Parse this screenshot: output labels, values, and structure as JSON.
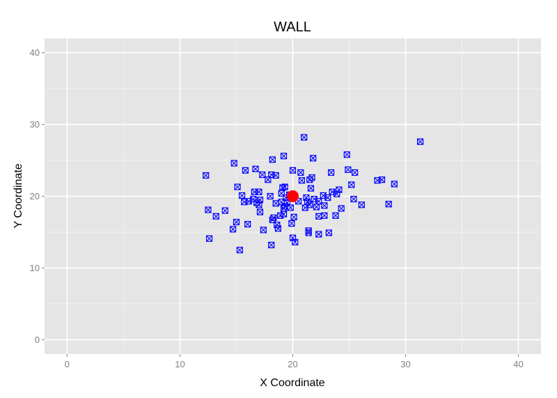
{
  "chart_data": {
    "type": "scatter",
    "title": "WALL",
    "xlabel": "X Coordinate",
    "ylabel": "Y Coordinate",
    "xlim": [
      -2,
      42
    ],
    "ylim": [
      -2,
      42
    ],
    "xticks": [
      0,
      10,
      20,
      30,
      40
    ],
    "yticks": [
      0,
      10,
      20,
      30,
      40
    ],
    "grid": true,
    "colors": {
      "panel": "#e5e5e5",
      "grid_major": "#ffffff",
      "grid_minor": "#f2f2f2",
      "points": "#0000ff",
      "center": "#ff0000"
    },
    "series": [
      {
        "marker": "square-cross",
        "points": [
          [
            12.3,
            22.9
          ],
          [
            12.5,
            18.1
          ],
          [
            12.6,
            14.1
          ],
          [
            13.2,
            17.2
          ],
          [
            14.0,
            18.0
          ],
          [
            14.7,
            15.4
          ],
          [
            14.8,
            24.6
          ],
          [
            15.0,
            16.4
          ],
          [
            15.1,
            21.3
          ],
          [
            15.3,
            12.5
          ],
          [
            15.5,
            20.1
          ],
          [
            15.8,
            23.6
          ],
          [
            15.7,
            19.2
          ],
          [
            16.0,
            16.1
          ],
          [
            16.1,
            19.3
          ],
          [
            16.5,
            19.6
          ],
          [
            16.6,
            20.6
          ],
          [
            16.7,
            23.8
          ],
          [
            16.8,
            19.1
          ],
          [
            17.0,
            20.6
          ],
          [
            17.0,
            18.8
          ],
          [
            17.1,
            19.5
          ],
          [
            17.1,
            17.8
          ],
          [
            17.3,
            23.0
          ],
          [
            17.4,
            15.3
          ],
          [
            17.8,
            22.3
          ],
          [
            18.0,
            20.0
          ],
          [
            18.1,
            23.0
          ],
          [
            18.2,
            25.1
          ],
          [
            18.2,
            16.7
          ],
          [
            18.1,
            13.2
          ],
          [
            18.3,
            17.0
          ],
          [
            18.5,
            22.9
          ],
          [
            18.5,
            19.0
          ],
          [
            18.6,
            16.0
          ],
          [
            18.7,
            15.5
          ],
          [
            18.9,
            17.3
          ],
          [
            19.0,
            19.2
          ],
          [
            19.0,
            20.4
          ],
          [
            19.1,
            21.2
          ],
          [
            19.2,
            18.3
          ],
          [
            19.2,
            17.5
          ],
          [
            19.2,
            25.6
          ],
          [
            19.3,
            18.6
          ],
          [
            19.3,
            21.3
          ],
          [
            19.4,
            19.8
          ],
          [
            19.5,
            19.1
          ],
          [
            19.7,
            20.2
          ],
          [
            19.8,
            18.4
          ],
          [
            19.9,
            16.2
          ],
          [
            20.0,
            14.2
          ],
          [
            20.0,
            23.6
          ],
          [
            20.1,
            17.1
          ],
          [
            20.2,
            13.6
          ],
          [
            20.5,
            19.3
          ],
          [
            20.7,
            23.3
          ],
          [
            20.8,
            22.2
          ],
          [
            21.0,
            28.2
          ],
          [
            21.1,
            18.4
          ],
          [
            21.2,
            19.8
          ],
          [
            21.3,
            19.2
          ],
          [
            21.4,
            15.2
          ],
          [
            21.4,
            14.9
          ],
          [
            21.5,
            18.8
          ],
          [
            21.5,
            22.3
          ],
          [
            21.6,
            21.1
          ],
          [
            21.7,
            22.6
          ],
          [
            21.8,
            25.3
          ],
          [
            21.9,
            19.6
          ],
          [
            22.1,
            18.5
          ],
          [
            22.3,
            19.3
          ],
          [
            22.3,
            14.7
          ],
          [
            22.3,
            17.2
          ],
          [
            22.7,
            20.1
          ],
          [
            22.8,
            18.7
          ],
          [
            22.8,
            17.3
          ],
          [
            23.1,
            19.8
          ],
          [
            23.2,
            14.9
          ],
          [
            23.4,
            23.3
          ],
          [
            23.5,
            20.6
          ],
          [
            23.8,
            17.3
          ],
          [
            23.9,
            20.3
          ],
          [
            24.1,
            20.9
          ],
          [
            24.3,
            18.3
          ],
          [
            24.8,
            25.8
          ],
          [
            24.9,
            23.7
          ],
          [
            25.2,
            21.6
          ],
          [
            25.4,
            19.6
          ],
          [
            25.5,
            23.3
          ],
          [
            26.1,
            18.8
          ],
          [
            27.5,
            22.2
          ],
          [
            27.9,
            22.3
          ],
          [
            28.5,
            18.9
          ],
          [
            29.0,
            21.7
          ],
          [
            31.3,
            27.6
          ]
        ]
      },
      {
        "marker": "filled-circle",
        "points": [
          [
            20.0,
            20.0
          ]
        ]
      }
    ]
  }
}
